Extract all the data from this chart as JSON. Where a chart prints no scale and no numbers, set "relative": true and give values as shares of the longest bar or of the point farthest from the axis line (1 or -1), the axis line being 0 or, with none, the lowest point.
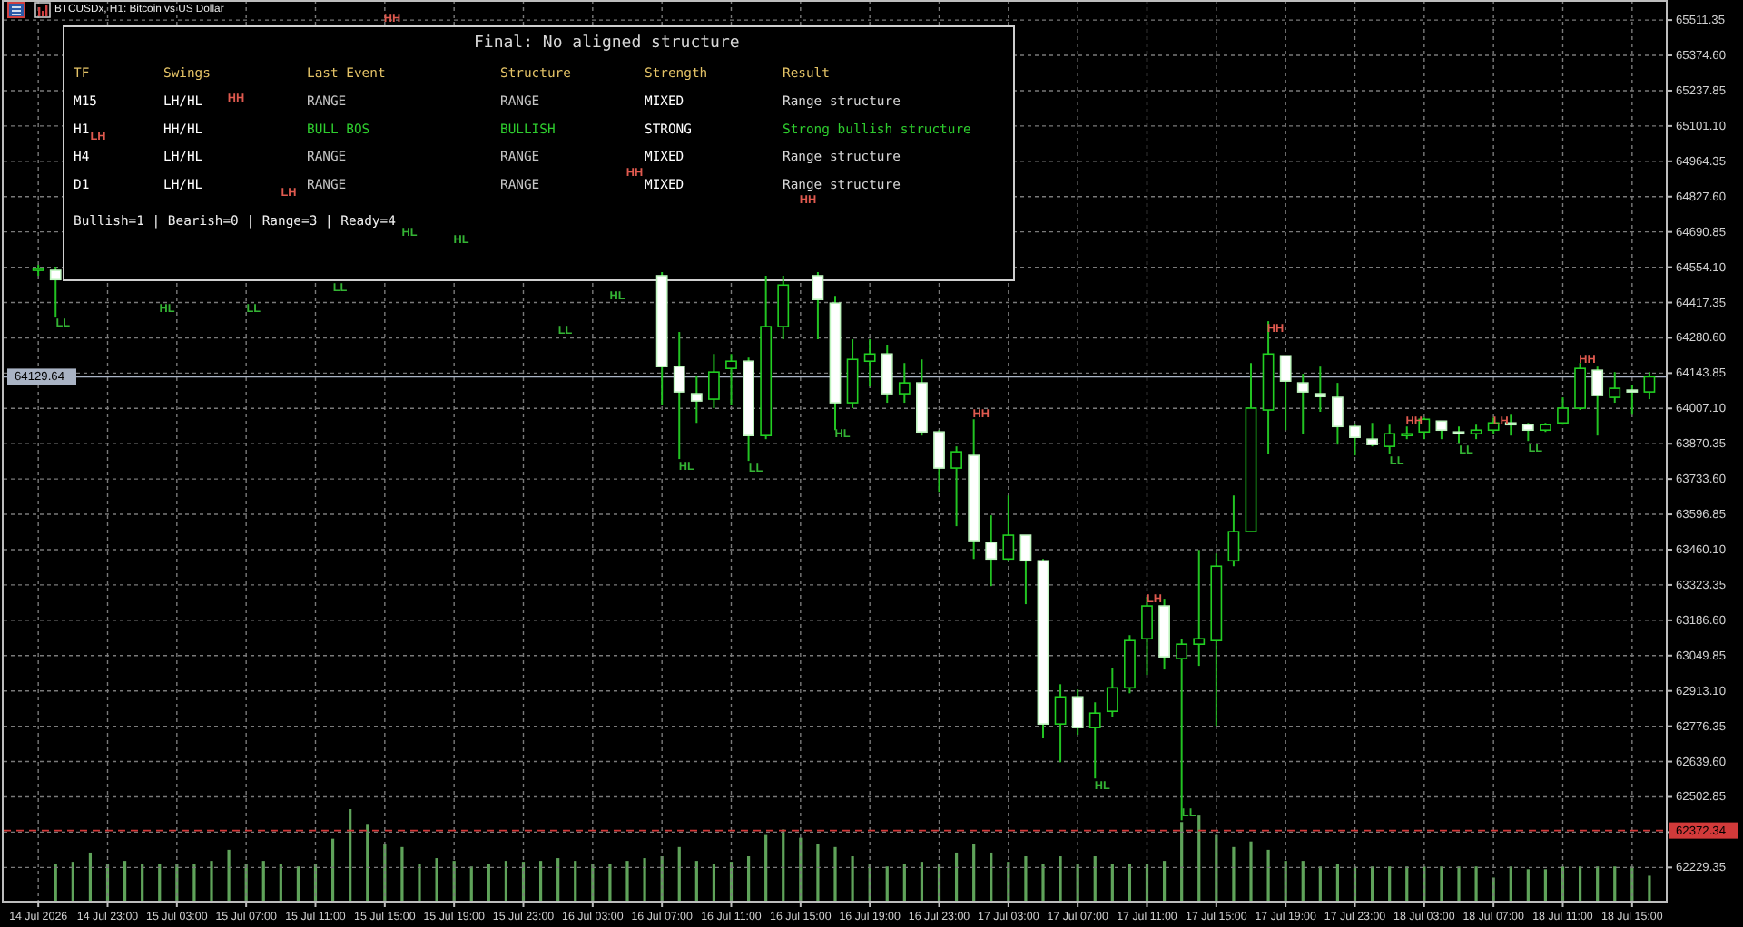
{
  "chart_data": [
    {
      "type": "candlestick",
      "title": "BTCUSDx, H1: Bitcoin vs US Dollar",
      "x": [
        "2026-07-14T19:00",
        "2026-07-14T20:00",
        "2026-07-16T07:00",
        "2026-07-16T08:00",
        "2026-07-16T09:00",
        "2026-07-16T10:00",
        "2026-07-16T11:00",
        "2026-07-16T12:00",
        "2026-07-16T13:00",
        "2026-07-16T14:00",
        "2026-07-16T16:00",
        "2026-07-16T17:00",
        "2026-07-16T18:00",
        "2026-07-16T19:00",
        "2026-07-16T20:00",
        "2026-07-16T21:00",
        "2026-07-16T22:00",
        "2026-07-16T23:00",
        "2026-07-17T00:00",
        "2026-07-17T01:00",
        "2026-07-17T02:00",
        "2026-07-17T03:00",
        "2026-07-17T04:00",
        "2026-07-17T05:00",
        "2026-07-17T06:00",
        "2026-07-17T07:00",
        "2026-07-17T08:00",
        "2026-07-17T09:00",
        "2026-07-17T10:00",
        "2026-07-17T11:00",
        "2026-07-17T12:00",
        "2026-07-17T13:00",
        "2026-07-17T14:00",
        "2026-07-17T15:00",
        "2026-07-17T16:00",
        "2026-07-17T17:00",
        "2026-07-17T18:00",
        "2026-07-17T19:00",
        "2026-07-17T20:00",
        "2026-07-17T21:00",
        "2026-07-17T22:00",
        "2026-07-17T23:00",
        "2026-07-18T00:00",
        "2026-07-18T01:00",
        "2026-07-18T02:00",
        "2026-07-18T03:00",
        "2026-07-18T04:00",
        "2026-07-18T05:00",
        "2026-07-18T06:00",
        "2026-07-18T07:00",
        "2026-07-18T08:00",
        "2026-07-18T09:00",
        "2026-07-18T10:00",
        "2026-07-18T11:00",
        "2026-07-18T12:00",
        "2026-07-18T13:00",
        "2026-07-18T14:00",
        "2026-07-18T15:00",
        "2026-07-18T16:00"
      ],
      "ohlc": [
        [
          64542,
          64563,
          64521,
          64549
        ],
        [
          64542,
          64556,
          64359,
          64506
        ],
        [
          64521,
          64535,
          64022,
          64169
        ],
        [
          64169,
          64303,
          63811,
          64071
        ],
        [
          64064,
          64134,
          63951,
          64036
        ],
        [
          64043,
          64218,
          64008,
          64148
        ],
        [
          64162,
          64218,
          64022,
          64190
        ],
        [
          64190,
          64204,
          63804,
          63902
        ],
        [
          63902,
          64521,
          63888,
          64324
        ],
        [
          64324,
          64521,
          64275,
          64485
        ],
        [
          64521,
          64535,
          64275,
          64429
        ],
        [
          64415,
          64443,
          63923,
          64029
        ],
        [
          64029,
          64275,
          64008,
          64197
        ],
        [
          64190,
          64275,
          64092,
          64218
        ],
        [
          64218,
          64254,
          64029,
          64064
        ],
        [
          64064,
          64183,
          64029,
          64106
        ],
        [
          64106,
          64197,
          63902,
          63916
        ],
        [
          63916,
          63923,
          63684,
          63776
        ],
        [
          63776,
          63860,
          63551,
          63839
        ],
        [
          63825,
          63965,
          63424,
          63495
        ],
        [
          63488,
          63593,
          63319,
          63424
        ],
        [
          63424,
          63670,
          63417,
          63516
        ],
        [
          63516,
          63516,
          63249,
          63417
        ],
        [
          63417,
          63424,
          62729,
          62785
        ],
        [
          62785,
          62939,
          62637,
          62890
        ],
        [
          62890,
          62918,
          62743,
          62771
        ],
        [
          62771,
          62869,
          62574,
          62827
        ],
        [
          62834,
          63003,
          62813,
          62925
        ],
        [
          62925,
          63129,
          62904,
          63108
        ],
        [
          63115,
          63277,
          62975,
          63242
        ],
        [
          63242,
          63270,
          62996,
          63045
        ],
        [
          63038,
          63115,
          62412,
          63094
        ],
        [
          63094,
          63459,
          63010,
          63115
        ],
        [
          63108,
          63445,
          62778,
          63396
        ],
        [
          63417,
          63670,
          63396,
          63530
        ],
        [
          63530,
          64183,
          63530,
          64008
        ],
        [
          64001,
          64345,
          63832,
          64218
        ],
        [
          64211,
          64211,
          63923,
          64113
        ],
        [
          64106,
          64141,
          63909,
          64071
        ],
        [
          64064,
          64169,
          63994,
          64053
        ],
        [
          64050,
          64106,
          63867,
          63937
        ],
        [
          63937,
          63944,
          63825,
          63895
        ],
        [
          63888,
          63951,
          63860,
          63867
        ],
        [
          63860,
          63944,
          63832,
          63909
        ],
        [
          63906,
          63937,
          63888,
          63909
        ],
        [
          63916,
          63972,
          63888,
          63965
        ],
        [
          63958,
          63958,
          63888,
          63923
        ],
        [
          63916,
          63937,
          63874,
          63913
        ],
        [
          63909,
          63944,
          63888,
          63923
        ],
        [
          63923,
          63972,
          63909,
          63951
        ],
        [
          63951,
          63986,
          63902,
          63948
        ],
        [
          63944,
          63951,
          63881,
          63923
        ],
        [
          63923,
          63951,
          63916,
          63944
        ],
        [
          63951,
          64050,
          63944,
          64008
        ],
        [
          64008,
          64183,
          64001,
          64162
        ],
        [
          64155,
          64169,
          63902,
          64057
        ],
        [
          64050,
          64148,
          64029,
          64085
        ],
        [
          64078,
          64099,
          63986,
          64071
        ],
        [
          64071,
          64148,
          64043,
          64129.64
        ]
      ],
      "xlim": [
        "2026-07-14T17:00",
        "2026-07-18T17:00"
      ],
      "ylim": [
        62097,
        65589
      ],
      "xticks": [
        {
          "value": "2026-07-14T19:00",
          "label": "14 Jul 2026"
        },
        {
          "value": "2026-07-14T23:00",
          "label": "14 Jul 23:00"
        },
        {
          "value": "2026-07-15T03:00",
          "label": "15 Jul 03:00"
        },
        {
          "value": "2026-07-15T07:00",
          "label": "15 Jul 07:00"
        },
        {
          "value": "2026-07-15T11:00",
          "label": "15 Jul 11:00"
        },
        {
          "value": "2026-07-15T15:00",
          "label": "15 Jul 15:00"
        },
        {
          "value": "2026-07-15T19:00",
          "label": "15 Jul 19:00"
        },
        {
          "value": "2026-07-15T23:00",
          "label": "15 Jul 23:00"
        },
        {
          "value": "2026-07-16T03:00",
          "label": "16 Jul 03:00"
        },
        {
          "value": "2026-07-16T07:00",
          "label": "16 Jul 07:00"
        },
        {
          "value": "2026-07-16T11:00",
          "label": "16 Jul 11:00"
        },
        {
          "value": "2026-07-16T15:00",
          "label": "16 Jul 15:00"
        },
        {
          "value": "2026-07-16T19:00",
          "label": "16 Jul 19:00"
        },
        {
          "value": "2026-07-16T23:00",
          "label": "16 Jul 23:00"
        },
        {
          "value": "2026-07-17T03:00",
          "label": "17 Jul 03:00"
        },
        {
          "value": "2026-07-17T07:00",
          "label": "17 Jul 07:00"
        },
        {
          "value": "2026-07-17T11:00",
          "label": "17 Jul 11:00"
        },
        {
          "value": "2026-07-17T15:00",
          "label": "17 Jul 15:00"
        },
        {
          "value": "2026-07-17T19:00",
          "label": "17 Jul 19:00"
        },
        {
          "value": "2026-07-17T23:00",
          "label": "17 Jul 23:00"
        },
        {
          "value": "2026-07-18T03:00",
          "label": "18 Jul 03:00"
        },
        {
          "value": "2026-07-18T07:00",
          "label": "18 Jul 07:00"
        },
        {
          "value": "2026-07-18T11:00",
          "label": "18 Jul 11:00"
        },
        {
          "value": "2026-07-18T15:00",
          "label": "18 Jul 15:00"
        }
      ],
      "yticks": [
        65511.35,
        {
          "value": 65374.6,
          "label": "65374.60"
        },
        65237.85,
        {
          "value": 65101.1,
          "label": "65101.10"
        },
        64964.35,
        {
          "value": 64827.6,
          "label": "64827.60"
        },
        64690.85,
        {
          "value": 64554.1,
          "label": "64554.10"
        },
        64417.35,
        {
          "value": 64280.6,
          "label": "64280.60"
        },
        64143.85,
        {
          "value": 64007.1,
          "label": "64007.10"
        },
        63870.35,
        {
          "value": 63733.6,
          "label": "63733.60"
        },
        63596.85,
        {
          "value": 63460.1,
          "label": "63460.10"
        },
        63323.35,
        {
          "value": 63186.6,
          "label": "63186.60"
        },
        63049.85,
        {
          "value": 62913.1,
          "label": "62913.10"
        },
        62776.35,
        {
          "value": 62639.6,
          "label": "62639.60"
        },
        62502.85,
        {
          "value": 62366.1,
          "label": null
        },
        62229.35
      ],
      "grid": true,
      "ref_lines": [
        {
          "axis": "y",
          "value": 64129.64,
          "label": "64129.64",
          "color": "#a9b3c4"
        },
        {
          "axis": "y",
          "value": 62372.34,
          "label": "62372.34",
          "color": "#d23a3a",
          "line_style": "dashed"
        }
      ],
      "annotations": [
        "HH",
        "HH",
        "LH",
        "LH",
        "HH",
        "HH",
        "HL",
        "HL",
        "HL",
        "LL",
        "LL",
        "LL",
        "HL",
        {
          "text": "LL",
          "x": "2026-07-14T20:00",
          "y": 64338
        },
        {
          "text": "HL",
          "x": "2026-07-16T08:00",
          "y": 63783
        },
        {
          "text": "LL",
          "x": "2026-07-16T12:00",
          "y": 63776
        },
        {
          "text": "HL",
          "x": "2026-07-16T17:00",
          "y": 63909
        },
        {
          "text": "HH",
          "x": "2026-07-17T01:00",
          "y": 63986
        },
        {
          "text": "HL",
          "x": "2026-07-17T08:00",
          "y": 62546
        },
        {
          "text": "LH",
          "x": "2026-07-17T11:00",
          "y": 63270
        },
        {
          "text": "LL",
          "x": "2026-07-17T13:00",
          "y": 62441
        },
        {
          "text": "HH",
          "x": "2026-07-17T18:00",
          "y": 64317
        },
        {
          "text": "LL",
          "x": "2026-07-18T01:00",
          "y": 63804
        },
        {
          "text": "HH",
          "x": "2026-07-18T02:00",
          "y": 63958
        },
        {
          "text": "LL",
          "x": "2026-07-18T05:00",
          "y": 63846
        },
        {
          "text": "LH",
          "x": "2026-07-18T07:00",
          "y": 63958
        },
        {
          "text": "LL",
          "x": "2026-07-18T09:00",
          "y": 63853
        },
        {
          "text": "HH",
          "x": "2026-07-18T12:00",
          "y": 64197
        }
      ]
    },
    {
      "type": "bar",
      "relative": true,
      "color": "#5fa35a",
      "xlim": [
        "2026-07-14T17:00",
        "2026-07-18T17:00"
      ],
      "x": [
        "2026-07-14T20:00",
        "2026-07-14T21:00",
        "2026-07-14T22:00",
        "2026-07-14T23:00",
        "2026-07-15T00:00",
        "2026-07-15T01:00",
        "2026-07-15T02:00",
        "2026-07-15T03:00",
        "2026-07-15T04:00",
        "2026-07-15T05:00",
        "2026-07-15T06:00",
        "2026-07-15T07:00",
        "2026-07-15T08:00",
        "2026-07-15T09:00",
        "2026-07-15T10:00",
        "2026-07-15T11:00",
        "2026-07-15T12:00",
        "2026-07-15T13:00",
        "2026-07-15T14:00",
        "2026-07-15T15:00",
        "2026-07-15T16:00",
        "2026-07-15T17:00",
        "2026-07-15T18:00",
        "2026-07-15T19:00",
        "2026-07-15T20:00",
        "2026-07-15T21:00",
        "2026-07-15T22:00",
        "2026-07-15T23:00",
        "2026-07-16T00:00",
        "2026-07-16T01:00",
        "2026-07-16T02:00",
        "2026-07-16T03:00",
        "2026-07-16T04:00",
        "2026-07-16T05:00",
        "2026-07-16T06:00",
        "2026-07-16T07:00",
        "2026-07-16T08:00",
        "2026-07-16T09:00",
        "2026-07-16T10:00",
        "2026-07-16T11:00",
        "2026-07-16T12:00",
        "2026-07-16T13:00",
        "2026-07-16T14:00",
        "2026-07-16T15:00",
        "2026-07-16T16:00",
        "2026-07-16T17:00",
        "2026-07-16T18:00",
        "2026-07-16T19:00",
        "2026-07-16T20:00",
        "2026-07-16T21:00",
        "2026-07-16T22:00",
        "2026-07-16T23:00",
        "2026-07-17T00:00",
        "2026-07-17T01:00",
        "2026-07-17T02:00",
        "2026-07-17T03:00",
        "2026-07-17T04:00",
        "2026-07-17T05:00",
        "2026-07-17T06:00",
        "2026-07-17T07:00",
        "2026-07-17T08:00",
        "2026-07-17T09:00",
        "2026-07-17T10:00",
        "2026-07-17T11:00",
        "2026-07-17T12:00",
        "2026-07-17T13:00",
        "2026-07-17T14:00",
        "2026-07-17T15:00",
        "2026-07-17T16:00",
        "2026-07-17T17:00",
        "2026-07-17T18:00",
        "2026-07-17T19:00",
        "2026-07-17T20:00",
        "2026-07-17T21:00",
        "2026-07-17T22:00",
        "2026-07-17T23:00",
        "2026-07-18T00:00",
        "2026-07-18T01:00",
        "2026-07-18T02:00",
        "2026-07-18T03:00",
        "2026-07-18T04:00",
        "2026-07-18T05:00",
        "2026-07-18T06:00",
        "2026-07-18T07:00",
        "2026-07-18T08:00",
        "2026-07-18T09:00",
        "2026-07-18T10:00",
        "2026-07-18T11:00",
        "2026-07-18T12:00",
        "2026-07-18T13:00",
        "2026-07-18T14:00",
        "2026-07-18T15:00",
        "2026-07-18T16:00"
      ],
      "values": [
        0.41,
        0.43,
        0.53,
        0.41,
        0.44,
        0.41,
        0.41,
        0.41,
        0.41,
        0.44,
        0.56,
        0.41,
        0.44,
        0.41,
        0.38,
        0.41,
        0.68,
        1,
        0.84,
        0.62,
        0.59,
        0.41,
        0.47,
        0.44,
        0.38,
        0.41,
        0.44,
        0.43,
        0.44,
        0.47,
        0.44,
        0.41,
        0.41,
        0.44,
        0.47,
        0.49,
        0.59,
        0.44,
        0.41,
        0.43,
        0.49,
        0.72,
        0.78,
        0.69,
        0.62,
        0.59,
        0.49,
        0.41,
        0.38,
        0.41,
        0.43,
        0.41,
        0.53,
        0.62,
        0.53,
        0.43,
        0.49,
        0.41,
        0.49,
        0.41,
        0.49,
        0.41,
        0.41,
        0.41,
        0.44,
        0.86,
        0.93,
        0.72,
        0.59,
        0.65,
        0.56,
        0.44,
        0.44,
        0.38,
        0.41,
        0.38,
        0.38,
        0.38,
        0.38,
        0.38,
        0.38,
        0.38,
        0.38,
        0.26,
        0.38,
        0.35,
        0.35,
        0.38,
        0.38,
        0.38,
        0.38,
        0.38,
        0.28
      ]
    },
    {
      "type": "other",
      "title": "Final: No aligned structure",
      "cell_labels": [
        [
          "TF",
          "Swings",
          "Last Event",
          "Structure",
          "Strength",
          "Result"
        ],
        [
          "M15",
          "LH/HL",
          "RANGE",
          "RANGE",
          "MIXED",
          "Range structure"
        ],
        [
          "H1",
          "HH/HL",
          "BULL BOS",
          "BULLISH",
          "STRONG",
          "Strong bullish structure"
        ],
        [
          "H4",
          "LH/HL",
          "RANGE",
          "RANGE",
          "MIXED",
          "Range structure"
        ],
        [
          "D1",
          "LH/HL",
          "RANGE",
          "RANGE",
          "MIXED",
          "Range structure"
        ]
      ],
      "colors": [
        [
          "#e3c266",
          "#e3c266",
          "#e3c266",
          "#e3c266",
          "#e3c266",
          "#e3c266"
        ],
        [
          "#ffffff",
          "#ffffff",
          "#c4c4c4",
          "#c4c4c4",
          "#ffffff",
          "#d6d6d6"
        ],
        [
          "#ffffff",
          "#ffffff",
          "#2ecc2e",
          "#2ecc2e",
          "#ffffff",
          "#2ecc2e"
        ],
        [
          "#ffffff",
          "#ffffff",
          "#c4c4c4",
          "#c4c4c4",
          "#ffffff",
          "#d6d6d6"
        ],
        [
          "#ffffff",
          "#ffffff",
          "#c4c4c4",
          "#c4c4c4",
          "#ffffff",
          "#d6d6d6"
        ]
      ],
      "annotations": [
        "Bullish=1 | Bearish=0 | Range=3 | Ready=4"
      ]
    }
  ]
}
